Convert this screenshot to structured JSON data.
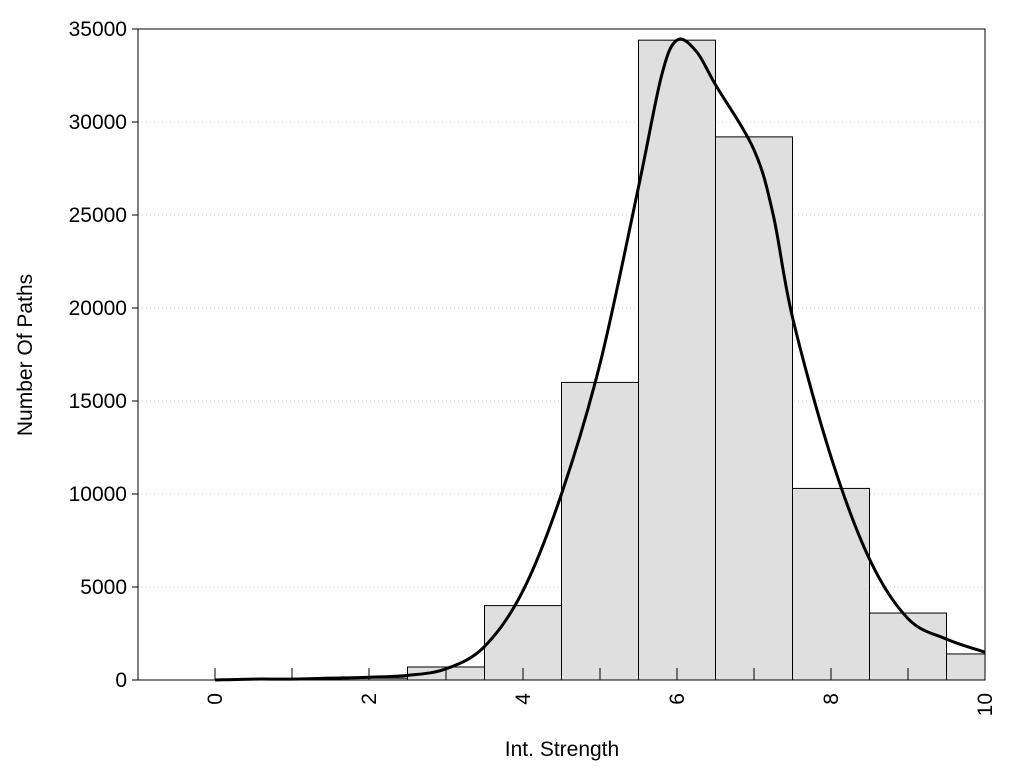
{
  "chart_data": {
    "type": "bar",
    "title": "",
    "xlabel": "Int. Strength",
    "ylabel": "Number Of Paths",
    "xlim": [
      -1,
      10
    ],
    "ylim": [
      0,
      35000
    ],
    "xticks": [
      0,
      2,
      4,
      6,
      8,
      10
    ],
    "yticks": [
      0,
      5000,
      10000,
      15000,
      20000,
      25000,
      30000,
      35000
    ],
    "xtick_labels": [
      "0",
      "2",
      "4",
      "6",
      "8",
      "10"
    ],
    "ytick_labels": [
      "0",
      "5000",
      "10000",
      "15000",
      "20000",
      "25000",
      "30000",
      "35000"
    ],
    "grid": "horizontal dotted",
    "bar_color": "#dfdfdf",
    "bars": [
      {
        "x": 0,
        "value": 0
      },
      {
        "x": 1,
        "value": 0
      },
      {
        "x": 2,
        "value": 100
      },
      {
        "x": 3,
        "value": 700
      },
      {
        "x": 4,
        "value": 4000
      },
      {
        "x": 5,
        "value": 16000
      },
      {
        "x": 6,
        "value": 34400
      },
      {
        "x": 7,
        "value": 29200
      },
      {
        "x": 8,
        "value": 10300
      },
      {
        "x": 9,
        "value": 3600
      },
      {
        "x": 10,
        "value": 1400
      }
    ],
    "curve": {
      "x": [
        0,
        0.5,
        1,
        1.5,
        2,
        2.5,
        3,
        3.5,
        4,
        4.5,
        5,
        5.5,
        5.8,
        6,
        6.25,
        6.5,
        7,
        7.25,
        7.5,
        8,
        8.5,
        9,
        9.5,
        10
      ],
      "y": [
        0,
        50,
        50,
        100,
        150,
        250,
        600,
        1800,
        4800,
        10000,
        17000,
        26500,
        32500,
        34400,
        33800,
        32000,
        28500,
        25000,
        19500,
        12000,
        6500,
        3300,
        2200,
        1500
      ]
    }
  }
}
